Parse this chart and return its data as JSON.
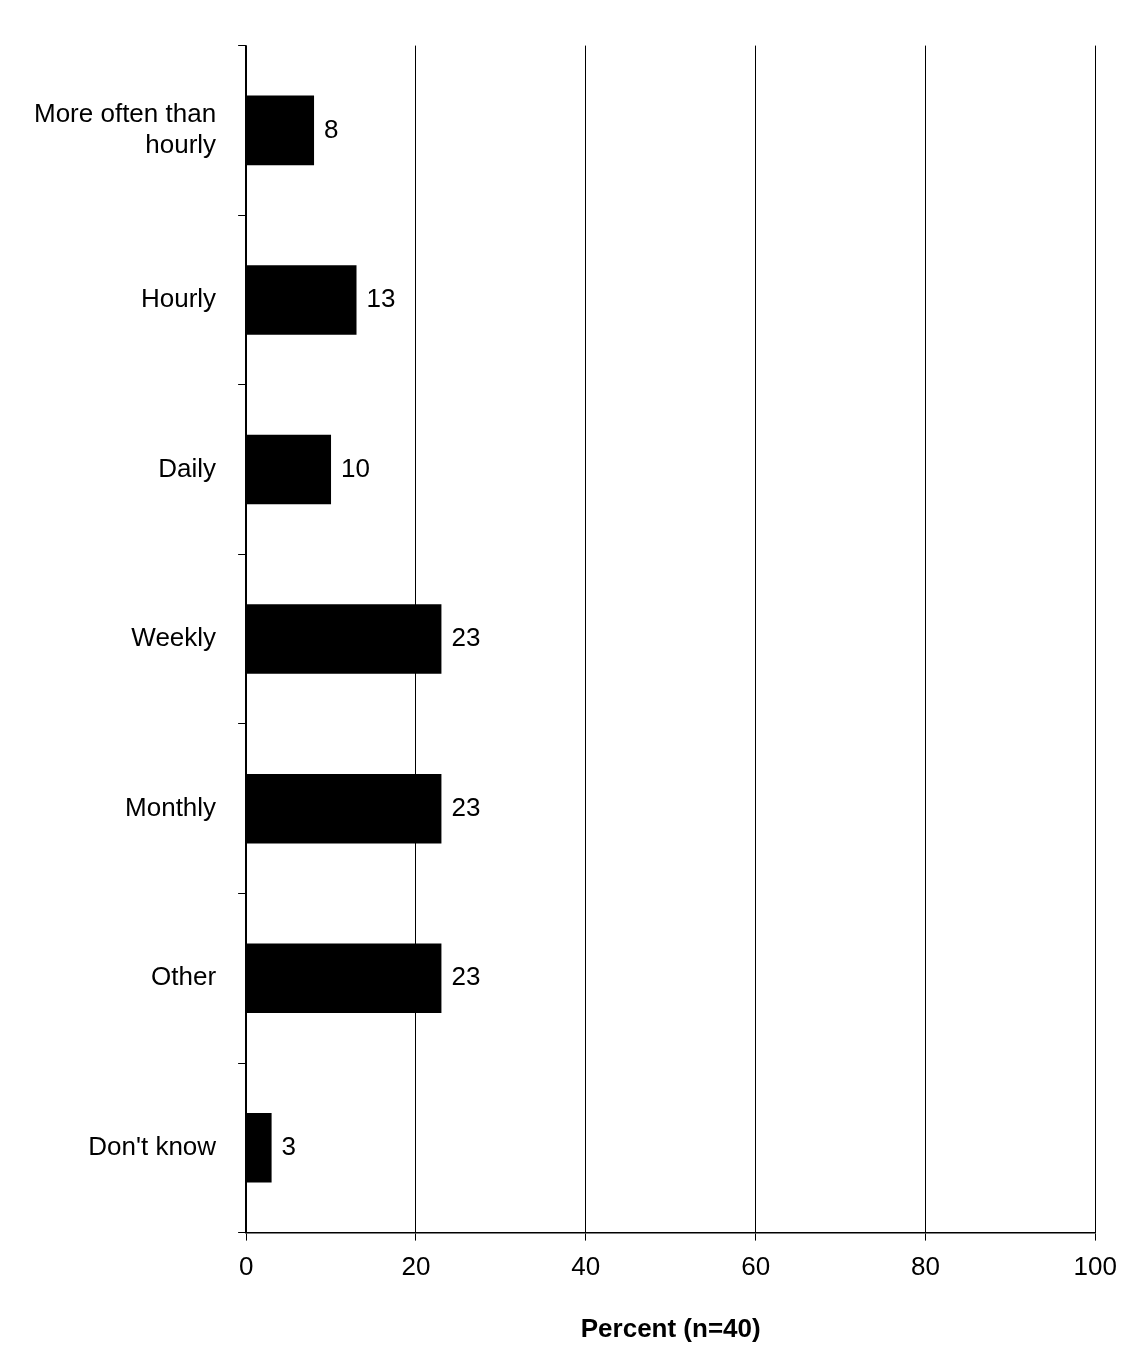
{
  "chart_data": {
    "type": "bar",
    "orientation": "horizontal",
    "xlabel": "Percent (n=40)",
    "categories": [
      "More often than hourly",
      "Hourly",
      "Daily",
      "Weekly",
      "Monthly",
      "Other",
      "Don't know"
    ],
    "values": [
      8,
      13,
      10,
      23,
      23,
      23,
      3
    ],
    "color": "#000000",
    "xlim": [
      0,
      100
    ],
    "xticks": [
      0,
      20,
      40,
      60,
      80,
      100
    ],
    "grid": "x",
    "legend": false,
    "data_labels": true
  }
}
